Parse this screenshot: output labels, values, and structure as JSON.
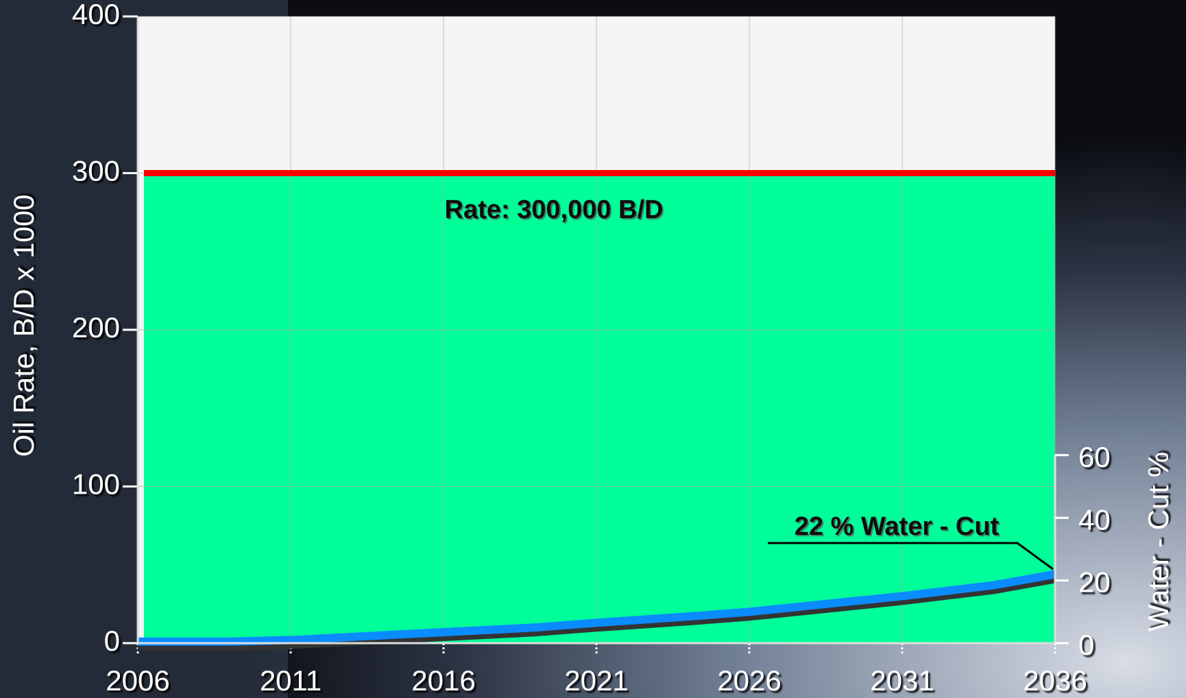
{
  "chart_data": {
    "type": "area",
    "xlim": [
      2006,
      2036
    ],
    "xticks": [
      2006,
      2011,
      2016,
      2021,
      2026,
      2031,
      2036
    ],
    "ylim": [
      0,
      400
    ],
    "yticks": [
      0,
      100,
      200,
      300,
      400
    ],
    "y2lim": [
      0,
      200
    ],
    "y2ticks": [
      0,
      20,
      40,
      60
    ],
    "ylabel": "Oil Rate, B/D x 1000",
    "y2label": "Water - Cut %",
    "grid": true,
    "series": [
      {
        "color": "#00ff99",
        "line_color": "#ff0000",
        "x": [
          2006.2,
          2036
        ],
        "values": [
          300,
          300
        ]
      },
      {
        "color": "#0a8cff",
        "axis": "y2",
        "x": [
          2006,
          2009,
          2011,
          2013,
          2016,
          2019,
          2021,
          2024,
          2026,
          2029,
          2031,
          2034,
          2036
        ],
        "values": [
          0.5,
          0.5,
          1,
          2,
          3.5,
          5,
          6.5,
          8.5,
          10,
          13,
          15,
          18.5,
          22
        ]
      }
    ],
    "annotations": [
      "Rate: 300,000 B/D",
      "22 % Water - Cut"
    ]
  }
}
